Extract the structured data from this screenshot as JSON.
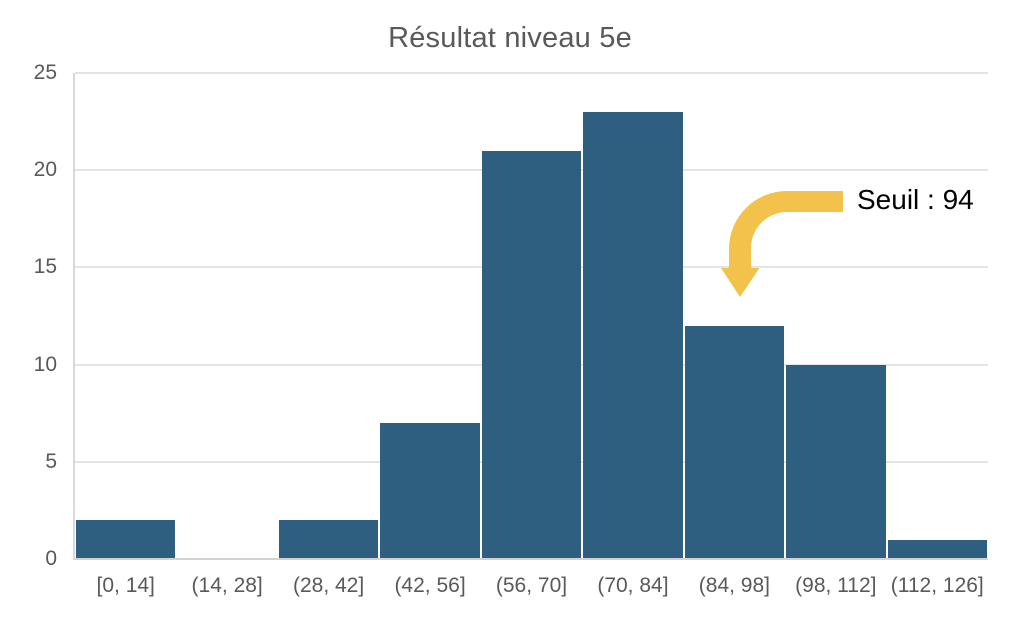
{
  "chart_data": {
    "type": "bar",
    "title": "Résultat niveau 5e",
    "categories": [
      "[0, 14]",
      "(14, 28]",
      "(28, 42]",
      "(42, 56]",
      "(56, 70]",
      "(70, 84]",
      "(84, 98]",
      "(98, 112]",
      "(112, 126]"
    ],
    "values": [
      2,
      0,
      2,
      7,
      21,
      23,
      12,
      10,
      1
    ],
    "xlabel": "",
    "ylabel": "",
    "ylim": [
      0,
      25
    ],
    "yticks": [
      0,
      5,
      10,
      15,
      20,
      25
    ],
    "grid": true,
    "legend_position": "none",
    "annotation": {
      "text": "Seuil : 94",
      "points_at_category": "(84, 98]"
    },
    "colors": {
      "bar": "#2e5f80",
      "arrow": "#f2c24b",
      "gridline": "#e4e4e4",
      "axis": "#d9d9d9",
      "tick_text": "#595959",
      "title_text": "#595959",
      "annotation_text": "#000000"
    }
  }
}
